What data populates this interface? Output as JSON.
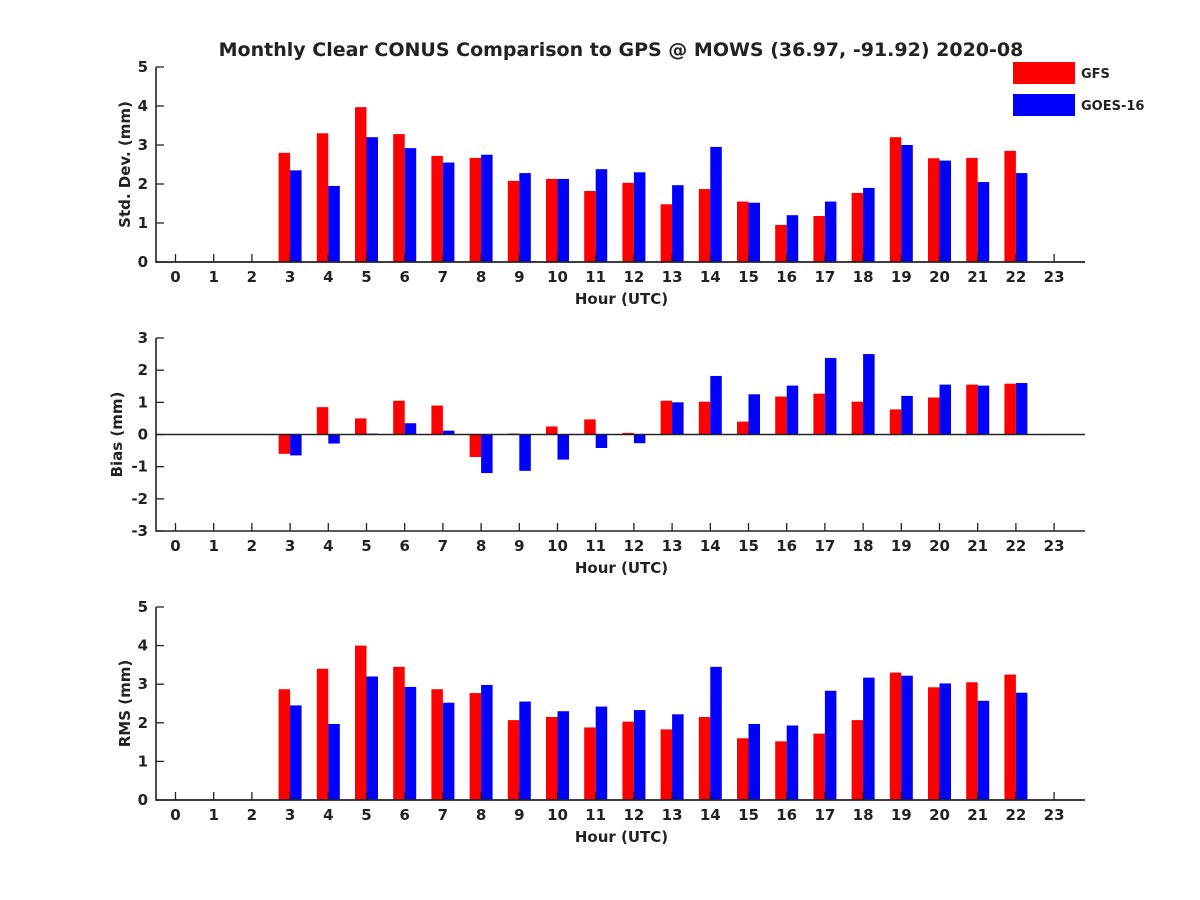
{
  "title": "Monthly Clear CONUS Comparison to GPS @ MOWS (36.97, -91.92) 2020-08",
  "legend": [
    {
      "name": "GFS",
      "color": "#ff0000"
    },
    {
      "name": "GOES-16",
      "color": "#0000ff"
    }
  ],
  "chart_data": [
    {
      "type": "bar",
      "xlabel": "Hour (UTC)",
      "ylabel": "Std. Dev. (mm)",
      "ylim": [
        0,
        5
      ],
      "yticks": [
        0,
        1,
        2,
        3,
        4,
        5
      ],
      "x": [
        0,
        1,
        2,
        3,
        4,
        5,
        6,
        7,
        8,
        9,
        10,
        11,
        12,
        13,
        14,
        15,
        16,
        17,
        18,
        19,
        20,
        21,
        22,
        23
      ],
      "series": [
        {
          "name": "GFS",
          "values": [
            null,
            null,
            null,
            2.8,
            3.3,
            3.97,
            3.28,
            2.72,
            2.67,
            2.08,
            2.13,
            1.82,
            2.03,
            1.48,
            1.87,
            1.55,
            0.95,
            1.18,
            1.77,
            3.2,
            2.66,
            2.67,
            2.85,
            null
          ]
        },
        {
          "name": "GOES-16",
          "values": [
            null,
            null,
            null,
            2.35,
            1.95,
            3.2,
            2.92,
            2.55,
            2.75,
            2.28,
            2.13,
            2.38,
            2.3,
            1.97,
            2.95,
            1.52,
            1.2,
            1.55,
            1.9,
            3.0,
            2.6,
            2.05,
            2.28,
            null
          ]
        }
      ]
    },
    {
      "type": "bar",
      "xlabel": "Hour (UTC)",
      "ylabel": "Bias (mm)",
      "ylim": [
        -3,
        3
      ],
      "yticks": [
        -3,
        -2,
        -1,
        0,
        1,
        2,
        3
      ],
      "x": [
        0,
        1,
        2,
        3,
        4,
        5,
        6,
        7,
        8,
        9,
        10,
        11,
        12,
        13,
        14,
        15,
        16,
        17,
        18,
        19,
        20,
        21,
        22,
        23
      ],
      "series": [
        {
          "name": "GFS",
          "values": [
            null,
            null,
            null,
            -0.6,
            0.85,
            0.5,
            1.05,
            0.9,
            -0.7,
            0.03,
            0.25,
            0.47,
            0.05,
            1.05,
            1.02,
            0.4,
            1.18,
            1.27,
            1.02,
            0.78,
            1.15,
            1.55,
            1.58,
            null
          ]
        },
        {
          "name": "GOES-16",
          "values": [
            null,
            null,
            null,
            -0.65,
            -0.28,
            0.03,
            0.35,
            0.12,
            -1.2,
            -1.13,
            -0.78,
            -0.42,
            -0.27,
            1.0,
            1.82,
            1.25,
            1.52,
            2.38,
            2.5,
            1.2,
            1.55,
            1.52,
            1.6,
            null
          ]
        }
      ]
    },
    {
      "type": "bar",
      "xlabel": "Hour (UTC)",
      "ylabel": "RMS (mm)",
      "ylim": [
        0,
        5
      ],
      "yticks": [
        0,
        1,
        2,
        3,
        4,
        5
      ],
      "x": [
        0,
        1,
        2,
        3,
        4,
        5,
        6,
        7,
        8,
        9,
        10,
        11,
        12,
        13,
        14,
        15,
        16,
        17,
        18,
        19,
        20,
        21,
        22,
        23
      ],
      "series": [
        {
          "name": "GFS",
          "values": [
            null,
            null,
            null,
            2.87,
            3.4,
            4.0,
            3.45,
            2.87,
            2.77,
            2.07,
            2.15,
            1.88,
            2.03,
            1.83,
            2.15,
            1.6,
            1.52,
            1.72,
            2.07,
            3.3,
            2.92,
            3.05,
            3.25,
            null
          ]
        },
        {
          "name": "GOES-16",
          "values": [
            null,
            null,
            null,
            2.45,
            1.97,
            3.2,
            2.93,
            2.52,
            2.98,
            2.55,
            2.3,
            2.42,
            2.33,
            2.22,
            3.45,
            1.97,
            1.93,
            2.83,
            3.17,
            3.22,
            3.02,
            2.57,
            2.78,
            null
          ]
        }
      ]
    }
  ]
}
